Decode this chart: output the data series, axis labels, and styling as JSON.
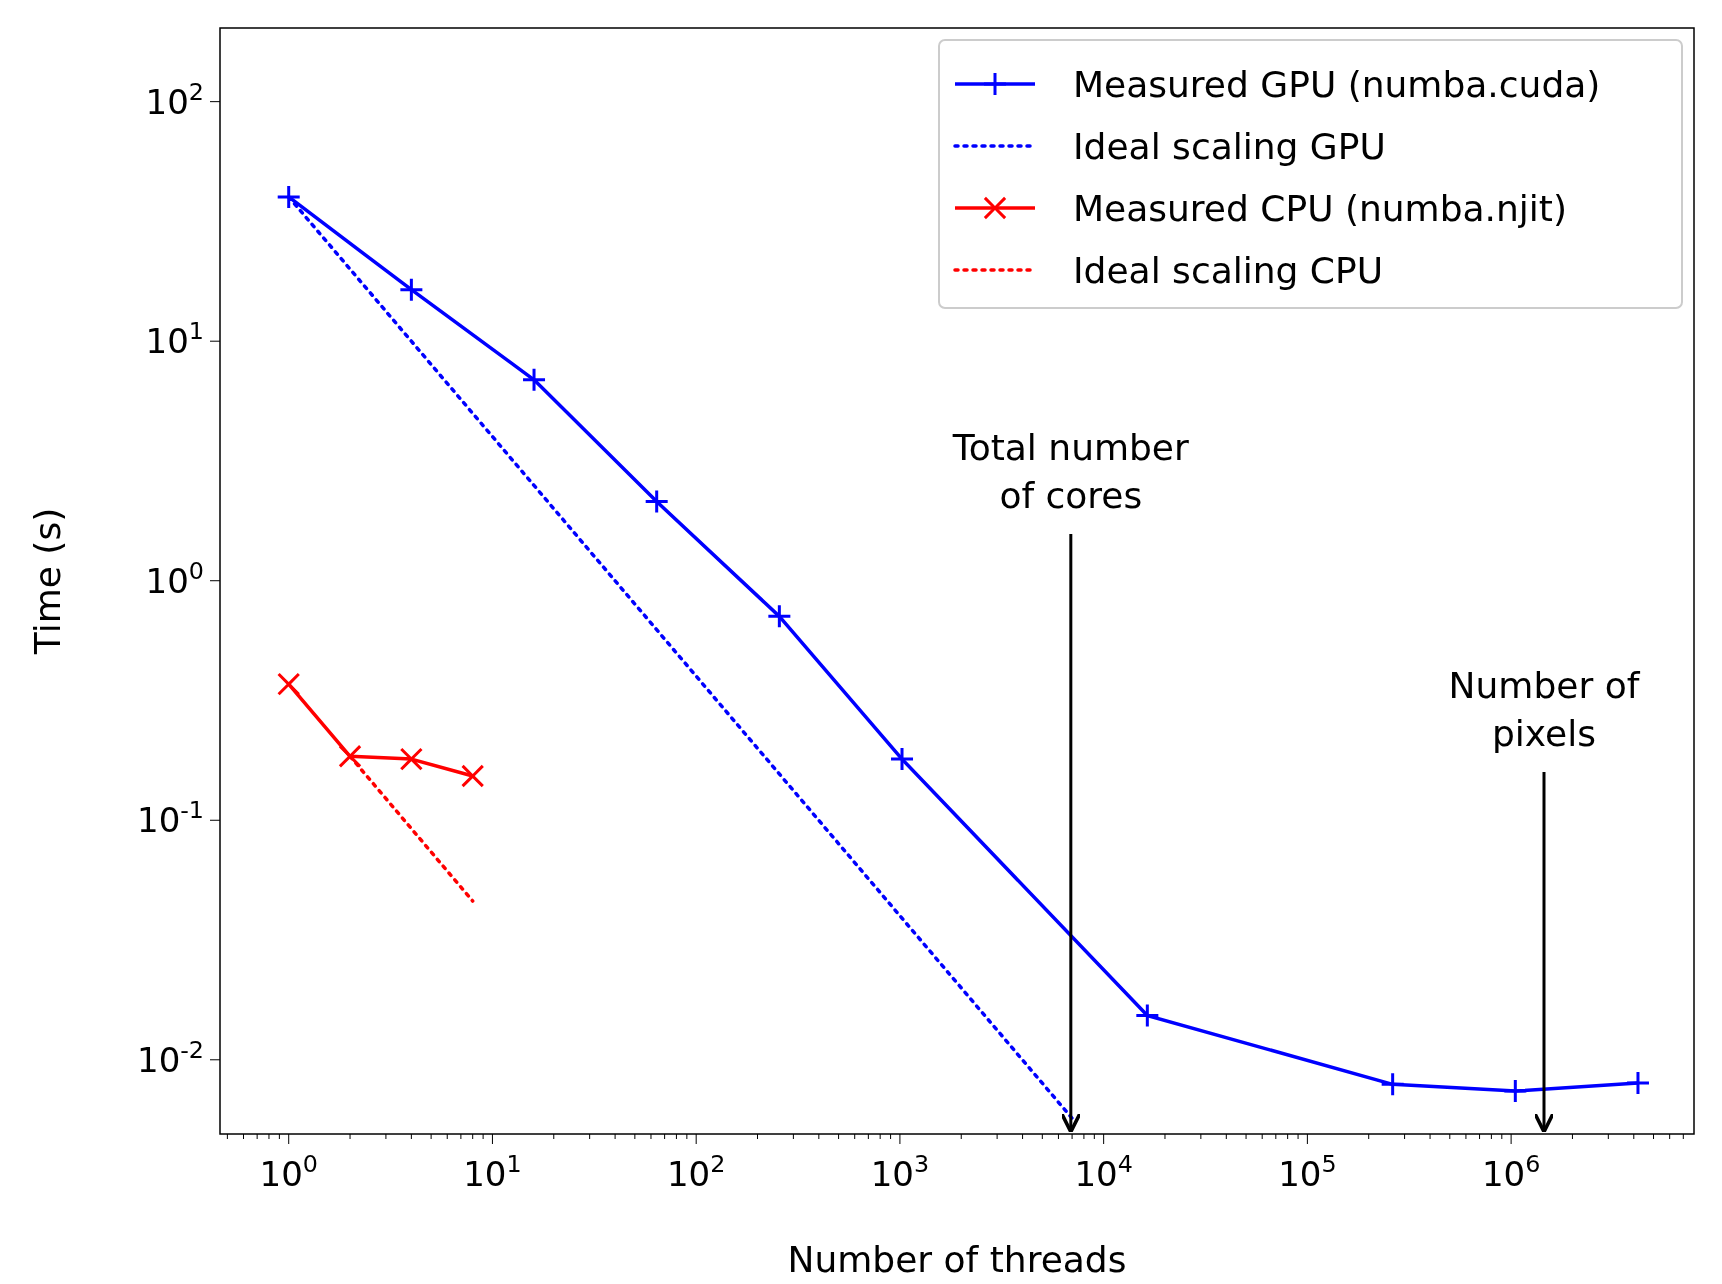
{
  "chart_data": {
    "type": "line",
    "xlabel": "Number of threads",
    "ylabel": "Time (s)",
    "log": "xy",
    "grid": false,
    "legend": "top right",
    "xlim": [
      0.46,
      7900000
    ],
    "ylim": [
      0.0049,
      203
    ],
    "xticks": [
      {
        "value": 1,
        "label": "10$^{0}$"
      },
      {
        "value": 10,
        "label": "10$^{1}$"
      },
      {
        "value": 100,
        "label": "10$^{2}$"
      },
      {
        "value": 1000,
        "label": "10$^{3}$"
      },
      {
        "value": 10000,
        "label": "10$^{4}$"
      },
      {
        "value": 100000,
        "label": "10$^{5}$"
      },
      {
        "value": 1000000,
        "label": "10$^{6}$"
      }
    ],
    "yticks": [
      {
        "value": 0.01,
        "label": "10$^{-2}$"
      },
      {
        "value": 0.1,
        "label": "10$^{-1}$"
      },
      {
        "value": 1,
        "label": "10$^{0}$"
      },
      {
        "value": 10,
        "label": "10$^{1}$"
      },
      {
        "value": 100,
        "label": "10$^{2}$"
      }
    ],
    "series": [
      {
        "name": "Measured GPU (numba.cuda)",
        "color": "#0000ff",
        "marker": "cross",
        "line_style": "solid",
        "x": [
          1,
          4,
          16,
          64,
          256,
          1024,
          16384,
          262144,
          1048576,
          4194304
        ],
        "values": [
          40,
          16.4,
          6.9,
          2.14,
          0.71,
          0.18,
          0.0153,
          0.0079,
          0.0074,
          0.008
        ]
      },
      {
        "name": "Ideal scaling GPU",
        "color": "#0000ff",
        "marker": "none",
        "line_style": "dotted",
        "x": [
          1,
          7000
        ],
        "values": [
          40,
          0.0057
        ]
      },
      {
        "name": "Measured CPU (numba.njit)",
        "color": "#ff0000",
        "marker": "cross",
        "line_style": "solid",
        "x": [
          1,
          2,
          4,
          8
        ],
        "values": [
          0.37,
          0.185,
          0.18,
          0.153
        ]
      },
      {
        "name": "Ideal scaling CPU",
        "color": "#ff0000",
        "marker": "none",
        "line_style": "dotted",
        "x": [
          2,
          8
        ],
        "values": [
          0.185,
          0.046
        ]
      }
    ],
    "ref_lines": [
      {
        "axis": "x",
        "value": 6900,
        "label": "Total number\nof cores"
      },
      {
        "axis": "x",
        "value": 1450000,
        "label": "Number of\npixels"
      }
    ]
  }
}
